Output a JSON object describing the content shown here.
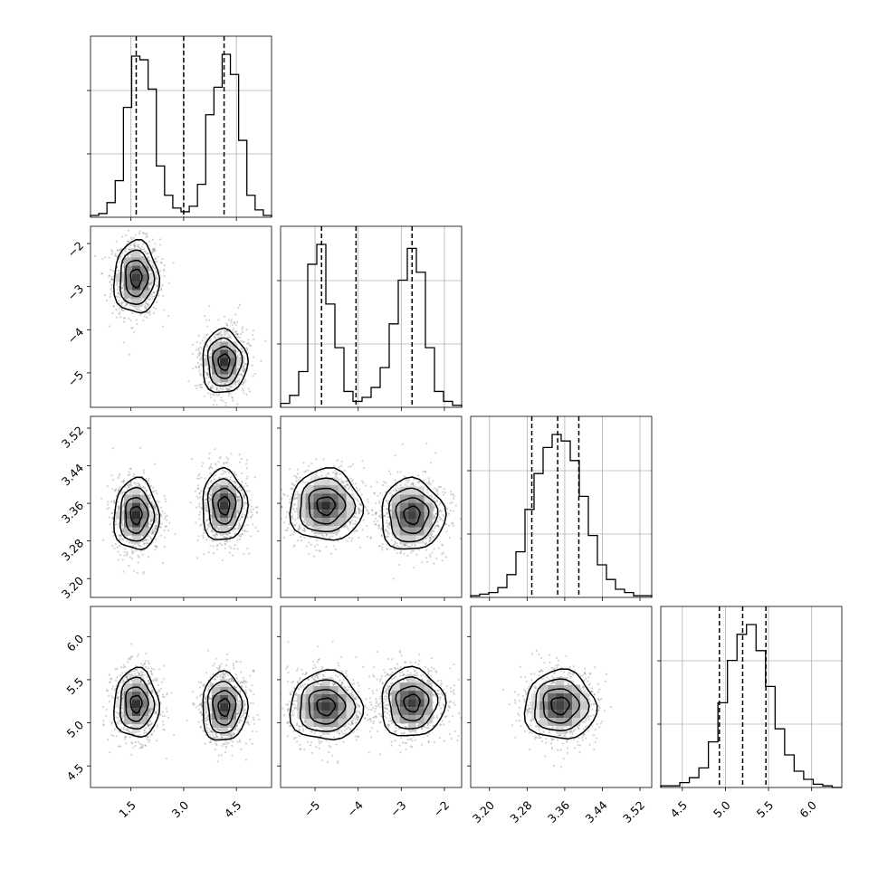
{
  "chart_data": {
    "type": "corner",
    "parameters": 4,
    "axis_ranges": [
      [
        0.35,
        5.5
      ],
      [
        -5.8,
        -1.6
      ],
      [
        3.16,
        3.545
      ],
      [
        4.25,
        6.35
      ]
    ],
    "ticks": [
      {
        "values": [
          1.5,
          3.0,
          4.5
        ],
        "labels": [
          "1.5",
          "3.0",
          "4.5"
        ]
      },
      {
        "values": [
          -5,
          -4,
          -3,
          -2
        ],
        "labels": [
          "−5",
          "−4",
          "−3",
          "−2"
        ]
      },
      {
        "values": [
          3.2,
          3.28,
          3.36,
          3.44,
          3.52
        ],
        "labels": [
          "3.20",
          "3.28",
          "3.36",
          "3.44",
          "3.52"
        ]
      },
      {
        "values": [
          4.5,
          5.0,
          5.5,
          6.0
        ],
        "labels": [
          "4.5",
          "5.0",
          "5.5",
          "6.0"
        ]
      }
    ],
    "quantiles": [
      [
        1.65,
        3.0,
        4.15
      ],
      [
        -4.85,
        -4.05,
        -2.75
      ],
      [
        3.29,
        3.345,
        3.39
      ],
      [
        4.93,
        5.2,
        5.47
      ]
    ],
    "histograms": [
      {
        "edges_range": [
          0.35,
          5.5
        ],
        "counts": [
          1,
          2,
          8,
          20,
          60,
          88,
          86,
          70,
          28,
          12,
          5,
          3,
          6,
          18,
          56,
          71,
          89,
          78,
          42,
          12,
          4,
          1
        ]
      },
      {
        "edges_range": [
          -5.8,
          -1.6
        ],
        "counts": [
          2,
          6,
          18,
          72,
          82,
          52,
          30,
          8,
          3,
          5,
          10,
          20,
          42,
          64,
          80,
          68,
          30,
          8,
          3,
          1
        ]
      },
      {
        "edges_range": [
          3.16,
          3.545
        ],
        "counts": [
          1,
          2,
          3,
          6,
          14,
          28,
          54,
          76,
          92,
          100,
          96,
          84,
          62,
          38,
          20,
          11,
          5,
          3,
          1,
          1
        ]
      },
      {
        "edges_range": [
          4.25,
          6.35
        ],
        "counts": [
          1,
          1,
          3,
          6,
          12,
          28,
          52,
          78,
          94,
          100,
          84,
          62,
          36,
          20,
          10,
          5,
          2,
          1,
          0
        ]
      }
    ],
    "modes": [
      [
        1.65,
        4.15
      ],
      [
        -4.75,
        -2.75
      ],
      [
        3.35
      ],
      [
        5.2
      ]
    ],
    "mode_spreads": [
      [
        0.32,
        0.32
      ],
      [
        0.42,
        0.37
      ],
      [
        0.038
      ],
      [
        0.2
      ]
    ],
    "mode_pairs": {
      "1-0": [
        [
          1.65,
          -2.8
        ],
        [
          4.15,
          -4.75
        ]
      ],
      "2-0": [
        [
          1.65,
          3.335
        ],
        [
          4.15,
          3.355
        ]
      ],
      "2-1": [
        [
          -4.75,
          3.355
        ],
        [
          -2.75,
          3.335
        ]
      ],
      "3-0": [
        [
          1.65,
          5.22
        ],
        [
          4.15,
          5.18
        ]
      ],
      "3-1": [
        [
          -4.75,
          5.19
        ],
        [
          -2.75,
          5.23
        ]
      ],
      "3-2": [
        [
          3.35,
          5.2
        ]
      ]
    }
  }
}
